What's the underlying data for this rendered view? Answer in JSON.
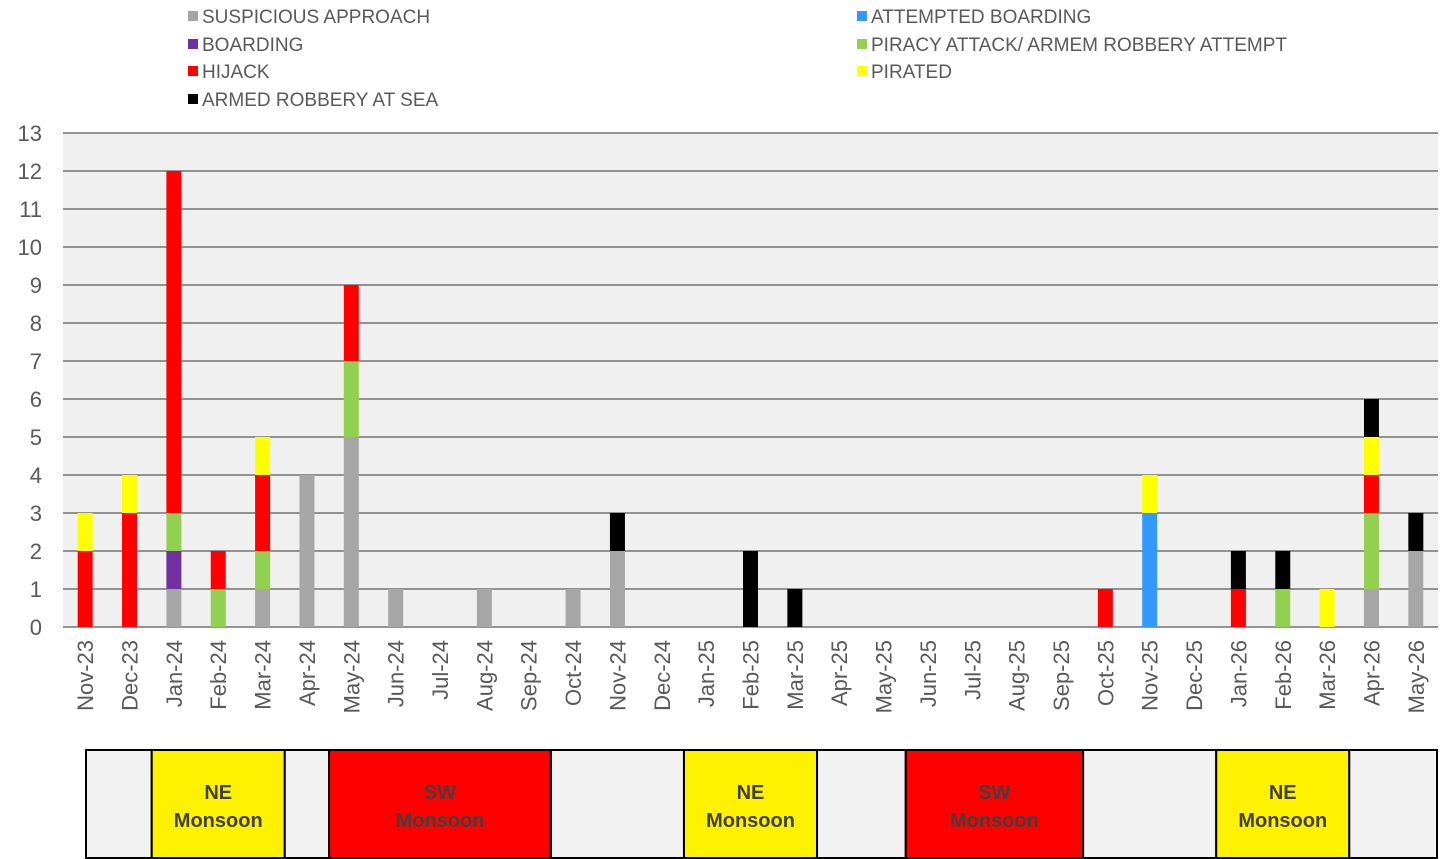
{
  "chart_data": {
    "type": "bar",
    "stacked": true,
    "categories": [
      "Nov-23",
      "Dec-23",
      "Jan-24",
      "Feb-24",
      "Mar-24",
      "Apr-24",
      "May-24",
      "Jun-24",
      "Jul-24",
      "Aug-24",
      "Sep-24",
      "Oct-24",
      "Nov-24",
      "Dec-24",
      "Jan-25",
      "Feb-25",
      "Mar-25",
      "Apr-25",
      "May-25",
      "Jun-25",
      "Jul-25",
      "Aug-25",
      "Sep-25",
      "Oct-25",
      "Nov-25",
      "Dec-25",
      "Jan-26",
      "Feb-26",
      "Mar-26",
      "Apr-26",
      "May-26"
    ],
    "series": [
      {
        "name": "SUSPICIOUS APPROACH",
        "color": "#A6A6A6",
        "values": [
          0,
          0,
          1,
          0,
          1,
          4,
          5,
          1,
          0,
          1,
          0,
          1,
          2,
          0,
          0,
          0,
          0,
          0,
          0,
          0,
          0,
          0,
          0,
          0,
          0,
          0,
          0,
          0,
          0,
          1,
          2
        ]
      },
      {
        "name": "ATTEMPTED BOARDING",
        "color": "#3399FF",
        "values": [
          0,
          0,
          0,
          0,
          0,
          0,
          0,
          0,
          0,
          0,
          0,
          0,
          0,
          0,
          0,
          0,
          0,
          0,
          0,
          0,
          0,
          0,
          0,
          0,
          3,
          0,
          0,
          0,
          0,
          0,
          0
        ]
      },
      {
        "name": "BOARDING",
        "color": "#7030A0",
        "values": [
          0,
          0,
          1,
          0,
          0,
          0,
          0,
          0,
          0,
          0,
          0,
          0,
          0,
          0,
          0,
          0,
          0,
          0,
          0,
          0,
          0,
          0,
          0,
          0,
          0,
          0,
          0,
          0,
          0,
          0,
          0
        ]
      },
      {
        "name": "PIRACY ATTACK/ ARMEM ROBBERY ATTEMPT",
        "color": "#92D050",
        "values": [
          0,
          0,
          1,
          1,
          1,
          0,
          2,
          0,
          0,
          0,
          0,
          0,
          0,
          0,
          0,
          0,
          0,
          0,
          0,
          0,
          0,
          0,
          0,
          0,
          0,
          0,
          0,
          1,
          0,
          2,
          0
        ]
      },
      {
        "name": "HIJACK",
        "color": "#FF0000",
        "values": [
          2,
          3,
          9,
          1,
          2,
          0,
          2,
          0,
          0,
          0,
          0,
          0,
          0,
          0,
          0,
          0,
          0,
          0,
          0,
          0,
          0,
          0,
          0,
          1,
          0,
          0,
          1,
          0,
          0,
          1,
          0
        ]
      },
      {
        "name": "PIRATED",
        "color": "#FFFF00",
        "values": [
          1,
          1,
          0,
          0,
          1,
          0,
          0,
          0,
          0,
          0,
          0,
          0,
          0,
          0,
          0,
          0,
          0,
          0,
          0,
          0,
          0,
          0,
          0,
          0,
          1,
          0,
          0,
          0,
          1,
          1,
          0
        ]
      },
      {
        "name": "ARMED ROBBERY AT SEA",
        "color": "#000000",
        "values": [
          0,
          0,
          0,
          0,
          0,
          0,
          0,
          0,
          0,
          0,
          0,
          0,
          1,
          0,
          0,
          2,
          1,
          0,
          0,
          0,
          0,
          0,
          0,
          0,
          0,
          0,
          1,
          1,
          0,
          1,
          1
        ]
      }
    ],
    "ylim": [
      0,
      13
    ],
    "yticks": [
      "0",
      "1",
      "2",
      "3",
      "4",
      "5",
      "6",
      "7",
      "8",
      "9",
      "10",
      "11",
      "12",
      "13"
    ],
    "grid": true,
    "legend_position": "top",
    "seasons": [
      {
        "line1": "",
        "line2": "",
        "from": "Nov-23",
        "to": "Dec-23",
        "color": "#F2F2F2"
      },
      {
        "line1": "NE",
        "line2": "Monsoon",
        "from": "Jan-24",
        "to": "Mar-24",
        "color": "#FFF200"
      },
      {
        "line1": "",
        "line2": "",
        "from": "Apr-24",
        "to": "Apr-24",
        "color": "#F2F2F2"
      },
      {
        "line1": "SW",
        "line2": "Monsoon",
        "from": "May-24",
        "to": "Sep-24",
        "color": "#FF0000"
      },
      {
        "line1": "",
        "line2": "",
        "from": "Oct-24",
        "to": "Dec-24",
        "color": "#F2F2F2"
      },
      {
        "line1": "NE",
        "line2": "Monsoon",
        "from": "Jan-25",
        "to": "Mar-25",
        "color": "#FFF200"
      },
      {
        "line1": "",
        "line2": "",
        "from": "Apr-25",
        "to": "May-25",
        "color": "#F2F2F2"
      },
      {
        "line1": "SW",
        "line2": "Monsoon",
        "from": "Jun-25",
        "to": "Sep-25",
        "color": "#FF0000"
      },
      {
        "line1": "",
        "line2": "",
        "from": "Oct-25",
        "to": "Dec-25",
        "color": "#F2F2F2"
      },
      {
        "line1": "NE",
        "line2": "Monsoon",
        "from": "Jan-26",
        "to": "Mar-26",
        "color": "#FFF200"
      },
      {
        "line1": "",
        "line2": "",
        "from": "Apr-26",
        "to": "May-26",
        "color": "#F2F2F2"
      }
    ]
  }
}
